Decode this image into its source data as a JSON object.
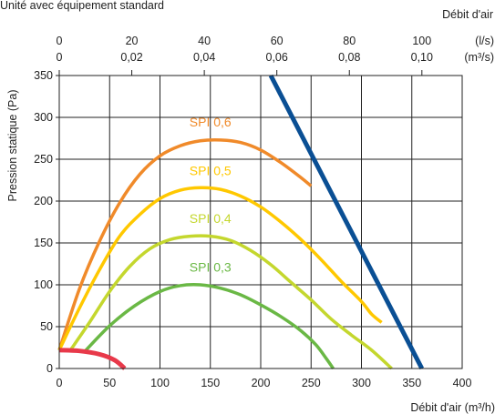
{
  "chart_data": {
    "type": "line",
    "header_text": "Unité avec équipement standard",
    "top_axis_title": "Débit d'air",
    "top_axis_ls_unit": "(l/s)",
    "top_axis_m3s_unit": "(m³/s)",
    "top_ticks_ls": [
      "0",
      "20",
      "40",
      "60",
      "80",
      "100"
    ],
    "top_ticks_m3s": [
      "0",
      "0,02",
      "0,04",
      "0,06",
      "0,08",
      "0,10"
    ],
    "xlabel": "Débit d'air (m³/h)",
    "ylabel": "Pression statique  (Pa)",
    "xlim": [
      0,
      400
    ],
    "ylim": [
      0,
      350
    ],
    "x_ticks": [
      "0",
      "50",
      "100",
      "150",
      "200",
      "250",
      "300",
      "350",
      "400"
    ],
    "y_ticks": [
      "0",
      "50",
      "100",
      "150",
      "200",
      "250",
      "300",
      "350"
    ],
    "grid": true,
    "series": [
      {
        "name": "SPI 0,6",
        "color": "#f08a2a",
        "points": [
          [
            0,
            22
          ],
          [
            20,
            95
          ],
          [
            40,
            152
          ],
          [
            60,
            198
          ],
          [
            80,
            232
          ],
          [
            100,
            254
          ],
          [
            120,
            266
          ],
          [
            140,
            272
          ],
          [
            160,
            273
          ],
          [
            180,
            270
          ],
          [
            200,
            261
          ],
          [
            220,
            246
          ],
          [
            240,
            228
          ],
          [
            250,
            218
          ]
        ]
      },
      {
        "name": "SPI 0,5",
        "color": "#ffc800",
        "points": [
          [
            0,
            22
          ],
          [
            20,
            72
          ],
          [
            40,
            118
          ],
          [
            60,
            158
          ],
          [
            80,
            184
          ],
          [
            100,
            203
          ],
          [
            120,
            213
          ],
          [
            140,
            216
          ],
          [
            160,
            214
          ],
          [
            180,
            206
          ],
          [
            200,
            193
          ],
          [
            220,
            175
          ],
          [
            240,
            154
          ],
          [
            260,
            130
          ],
          [
            280,
            104
          ],
          [
            300,
            80
          ],
          [
            310,
            65
          ],
          [
            320,
            55
          ]
        ]
      },
      {
        "name": "SPI 0,4",
        "color": "#c4d72e",
        "points": [
          [
            10,
            20
          ],
          [
            30,
            55
          ],
          [
            50,
            92
          ],
          [
            70,
            122
          ],
          [
            90,
            143
          ],
          [
            110,
            154
          ],
          [
            130,
            158
          ],
          [
            150,
            158
          ],
          [
            170,
            153
          ],
          [
            190,
            141
          ],
          [
            210,
            124
          ],
          [
            230,
            103
          ],
          [
            250,
            82
          ],
          [
            270,
            59
          ],
          [
            290,
            40
          ],
          [
            310,
            22
          ],
          [
            330,
            0
          ]
        ]
      },
      {
        "name": "SPI 0,3",
        "color": "#6ab845",
        "points": [
          [
            25,
            20
          ],
          [
            50,
            51
          ],
          [
            75,
            75
          ],
          [
            100,
            92
          ],
          [
            120,
            99
          ],
          [
            140,
            100
          ],
          [
            160,
            96
          ],
          [
            180,
            88
          ],
          [
            200,
            76
          ],
          [
            220,
            62
          ],
          [
            240,
            45
          ],
          [
            255,
            28
          ],
          [
            265,
            12
          ],
          [
            272,
            0
          ]
        ]
      },
      {
        "name": "",
        "color": "#0a4f94",
        "points": [
          [
            210,
            350
          ],
          [
            360,
            0
          ]
        ]
      },
      {
        "name": "",
        "color": "#e8394a",
        "points": [
          [
            0,
            22
          ],
          [
            20,
            21
          ],
          [
            40,
            17
          ],
          [
            55,
            10
          ],
          [
            65,
            0
          ]
        ]
      }
    ]
  }
}
